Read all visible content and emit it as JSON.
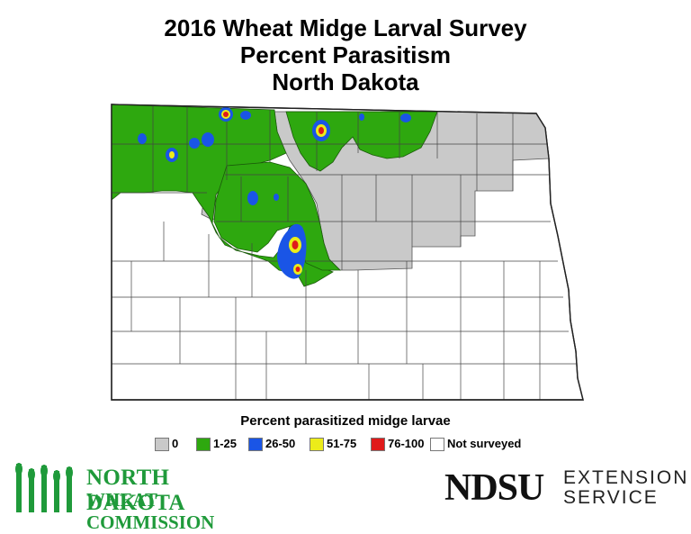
{
  "title": {
    "line1": "2016 Wheat Midge Larval Survey",
    "line2": "Percent Parasitism",
    "line3": "North Dakota"
  },
  "map": {
    "state": "North Dakota",
    "category_colors": {
      "zero": "#c9c9c9",
      "low": "#2ea80f",
      "mid": "#1a55e6",
      "high": "#ecec1a",
      "top": "#e01a1a",
      "not_surveyed": "#ffffff"
    },
    "hotspots": [
      {
        "level": "76-100",
        "region": "north-central border"
      },
      {
        "level": "76-100",
        "region": "north-east of center border"
      },
      {
        "level": "76-100",
        "region": "central (McLean area)"
      },
      {
        "level": "51-75",
        "region": "central (McLean area)"
      },
      {
        "level": "26-50",
        "region": "north-west"
      }
    ]
  },
  "legend": {
    "title": "Percent parasitized midge larvae",
    "items": [
      {
        "label": "0",
        "color": "#c9c9c9"
      },
      {
        "label": "1-25",
        "color": "#2ea80f"
      },
      {
        "label": "26-50",
        "color": "#1a55e6"
      },
      {
        "label": "51-75",
        "color": "#ecec1a"
      },
      {
        "label": "76-100",
        "color": "#e01a1a"
      },
      {
        "label": "Not surveyed",
        "color": "#ffffff"
      }
    ]
  },
  "logos": {
    "nd_wheat": {
      "line1": "NORTH DAKOTA",
      "line2": "WHEAT COMMISSION",
      "color": "#1f9a3a"
    },
    "ndsu": {
      "name": "NDSU",
      "ext_line1": "EXTENSION",
      "ext_line2": "SERVICE"
    }
  }
}
